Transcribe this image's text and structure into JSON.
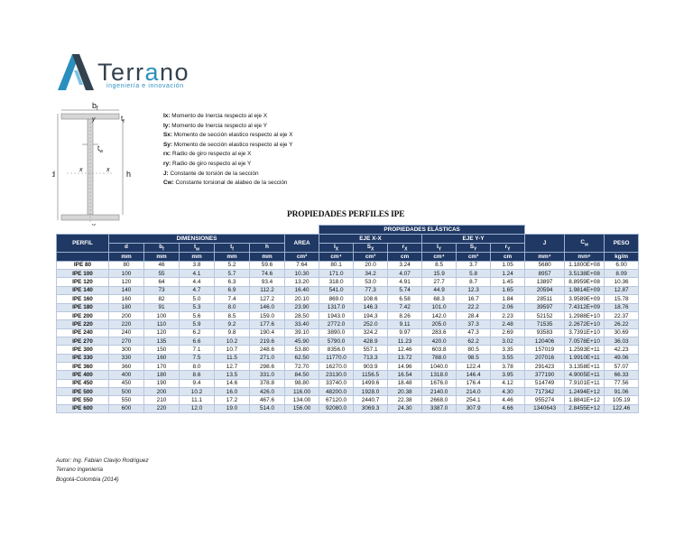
{
  "brand": {
    "name_pre": "Terr",
    "name_accent": "a",
    "name_post": "no",
    "tagline": "ingeniería e innovación"
  },
  "diagram": {
    "bf": "b",
    "bf_sub": "f",
    "tf": "t",
    "tf_sub": "f",
    "tw": "t",
    "tw_sub": "w",
    "d": "d",
    "h": "h",
    "y_top": "y",
    "y_bottom": "y",
    "x_left": "x",
    "x_right": "x"
  },
  "legend": [
    {
      "symbol": "Ix:",
      "text": "Momento de Inercia respecto al eje X"
    },
    {
      "symbol": "Iy:",
      "text": "Momento de Inercia respecto al eje Y"
    },
    {
      "symbol": "Sx:",
      "text": "Momento de sección elastico respecto al eje X"
    },
    {
      "symbol": "Sy:",
      "text": "Momento de sección elastico respecto al eje Y"
    },
    {
      "symbol": "rx:",
      "text": "Radio de giro respecto al eje X"
    },
    {
      "symbol": "ry:",
      "text": "Radio de giro respecto al eje Y"
    },
    {
      "symbol": "J:",
      "text": "Constante de torsión de la sección"
    },
    {
      "symbol": "Cw:",
      "text": "Constante torsional de alabeo de la sección"
    }
  ],
  "table": {
    "title": "PROPIEDADES PERFILES IPE",
    "group_elastic": "PROPIEDADES ELÁSTICAS",
    "group_dims": "DIMENSIONES",
    "group_x": "EJE X-X",
    "group_y": "EJE Y-Y",
    "col_perfil": "PERFIL",
    "col_area": "AREA",
    "col_j": "J",
    "col_cw": "C",
    "col_cw_sub": "w",
    "col_peso": "PESO",
    "dim_cols": [
      {
        "label": "d",
        "sub": ""
      },
      {
        "label": "b",
        "sub": "f"
      },
      {
        "label": "t",
        "sub": "w"
      },
      {
        "label": "t",
        "sub": "f"
      },
      {
        "label": "h",
        "sub": ""
      }
    ],
    "x_cols": [
      {
        "label": "I",
        "sub": "X"
      },
      {
        "label": "S",
        "sub": "X"
      },
      {
        "label": "r",
        "sub": "X"
      }
    ],
    "y_cols": [
      {
        "label": "I",
        "sub": "Y"
      },
      {
        "label": "S",
        "sub": "Y"
      },
      {
        "label": "r",
        "sub": "Y"
      }
    ],
    "units": [
      "mm",
      "mm",
      "mm",
      "mm",
      "mm",
      "cm²",
      "cm⁴",
      "cm³",
      "cm",
      "cm⁴",
      "cm³",
      "cm",
      "mm⁴",
      "mm⁶",
      "kg/m"
    ],
    "rows": [
      [
        "IPE 80",
        "80",
        "46",
        "3.8",
        "5.2",
        "59.6",
        "7.64",
        "80.1",
        "20.0",
        "3.24",
        "8.5",
        "3.7",
        "1.05",
        "5680",
        "1.1800E+08",
        "6.00"
      ],
      [
        "IPE 100",
        "100",
        "55",
        "4.1",
        "5.7",
        "74.6",
        "10.30",
        "171.0",
        "34.2",
        "4.07",
        "15.9",
        "5.8",
        "1.24",
        "8957",
        "3.5138E+08",
        "8.09"
      ],
      [
        "IPE 120",
        "120",
        "64",
        "4.4",
        "6.3",
        "93.4",
        "13.20",
        "318.0",
        "53.0",
        "4.91",
        "27.7",
        "8.7",
        "1.45",
        "13897",
        "8.8959E+08",
        "10.36"
      ],
      [
        "IPE 140",
        "140",
        "73",
        "4.7",
        "6.9",
        "112.2",
        "16.40",
        "541.0",
        "77.3",
        "5.74",
        "44.9",
        "12.3",
        "1.65",
        "20594",
        "1.9814E+09",
        "12.87"
      ],
      [
        "IPE 160",
        "160",
        "82",
        "5.0",
        "7.4",
        "127.2",
        "20.10",
        "869.0",
        "108.6",
        "6.58",
        "68.3",
        "16.7",
        "1.84",
        "28511",
        "3.9589E+09",
        "15.78"
      ],
      [
        "IPE 180",
        "180",
        "91",
        "5.3",
        "8.0",
        "146.0",
        "23.90",
        "1317.0",
        "146.3",
        "7.42",
        "101.0",
        "22.2",
        "2.06",
        "39597",
        "7.4312E+09",
        "18.76"
      ],
      [
        "IPE 200",
        "200",
        "100",
        "5.6",
        "8.5",
        "159.0",
        "28.50",
        "1943.0",
        "194.3",
        "8.26",
        "142.0",
        "28.4",
        "2.23",
        "52152",
        "1.2988E+10",
        "22.37"
      ],
      [
        "IPE 220",
        "220",
        "110",
        "5.9",
        "9.2",
        "177.6",
        "33.40",
        "2772.0",
        "252.0",
        "9.11",
        "205.0",
        "37.3",
        "2.48",
        "71535",
        "2.2672E+10",
        "26.22"
      ],
      [
        "IPE 240",
        "240",
        "120",
        "6.2",
        "9.8",
        "190.4",
        "39.10",
        "3890.0",
        "324.2",
        "9.97",
        "283.6",
        "47.3",
        "2.69",
        "93583",
        "3.7391E+10",
        "30.69"
      ],
      [
        "IPE 270",
        "270",
        "135",
        "6.6",
        "10.2",
        "219.6",
        "45.90",
        "5790.0",
        "428.9",
        "11.23",
        "420.0",
        "62.2",
        "3.02",
        "120406",
        "7.0578E+10",
        "36.03"
      ],
      [
        "IPE 300",
        "300",
        "150",
        "7.1",
        "10.7",
        "248.6",
        "53.80",
        "8356.0",
        "557.1",
        "12.46",
        "603.8",
        "80.5",
        "3.35",
        "157019",
        "1.2593E+11",
        "42.23"
      ],
      [
        "IPE 330",
        "330",
        "160",
        "7.5",
        "11.5",
        "271.0",
        "62.50",
        "11770.0",
        "713.3",
        "13.72",
        "788.0",
        "98.5",
        "3.55",
        "207016",
        "1.9910E+11",
        "49.06"
      ],
      [
        "IPE 360",
        "360",
        "170",
        "8.0",
        "12.7",
        "298.6",
        "72.70",
        "16270.0",
        "903.9",
        "14.96",
        "1040.0",
        "122.4",
        "3.78",
        "291423",
        "3.1358E+11",
        "57.07"
      ],
      [
        "IPE 400",
        "400",
        "180",
        "8.6",
        "13.5",
        "331.0",
        "84.50",
        "23130.0",
        "1156.5",
        "16.54",
        "1318.0",
        "146.4",
        "3.95",
        "377190",
        "4.9005E+11",
        "66.33"
      ],
      [
        "IPE 450",
        "450",
        "190",
        "9.4",
        "14.6",
        "378.8",
        "98.80",
        "33740.0",
        "1499.6",
        "18.48",
        "1676.0",
        "176.4",
        "4.12",
        "514749",
        "7.9101E+11",
        "77.56"
      ],
      [
        "IPE 500",
        "500",
        "200",
        "10.2",
        "16.0",
        "426.0",
        "116.00",
        "48200.0",
        "1928.0",
        "20.38",
        "2140.0",
        "214.0",
        "4.30",
        "717342",
        "1.2494E+12",
        "91.06"
      ],
      [
        "IPE 550",
        "550",
        "210",
        "11.1",
        "17.2",
        "467.6",
        "134.00",
        "67120.0",
        "2440.7",
        "22.38",
        "2668.0",
        "254.1",
        "4.46",
        "955274",
        "1.8841E+12",
        "105.19"
      ],
      [
        "IPE 600",
        "600",
        "220",
        "12.0",
        "19.0",
        "514.0",
        "156.00",
        "92080.0",
        "3069.3",
        "24.30",
        "3387.0",
        "307.9",
        "4.66",
        "1340643",
        "2.8455E+12",
        "122.46"
      ]
    ]
  },
  "footer": [
    "Autor: Ing. Fabian Clavijo Rodriguez",
    "Terrano Ingeniería",
    "Bogotá-Colombia (2014)"
  ],
  "colors": {
    "header_bg": "#1f3864",
    "row_alt": "#dbe5f1",
    "brand_blue": "#2a8fbf",
    "brand_dark": "#33424f"
  }
}
